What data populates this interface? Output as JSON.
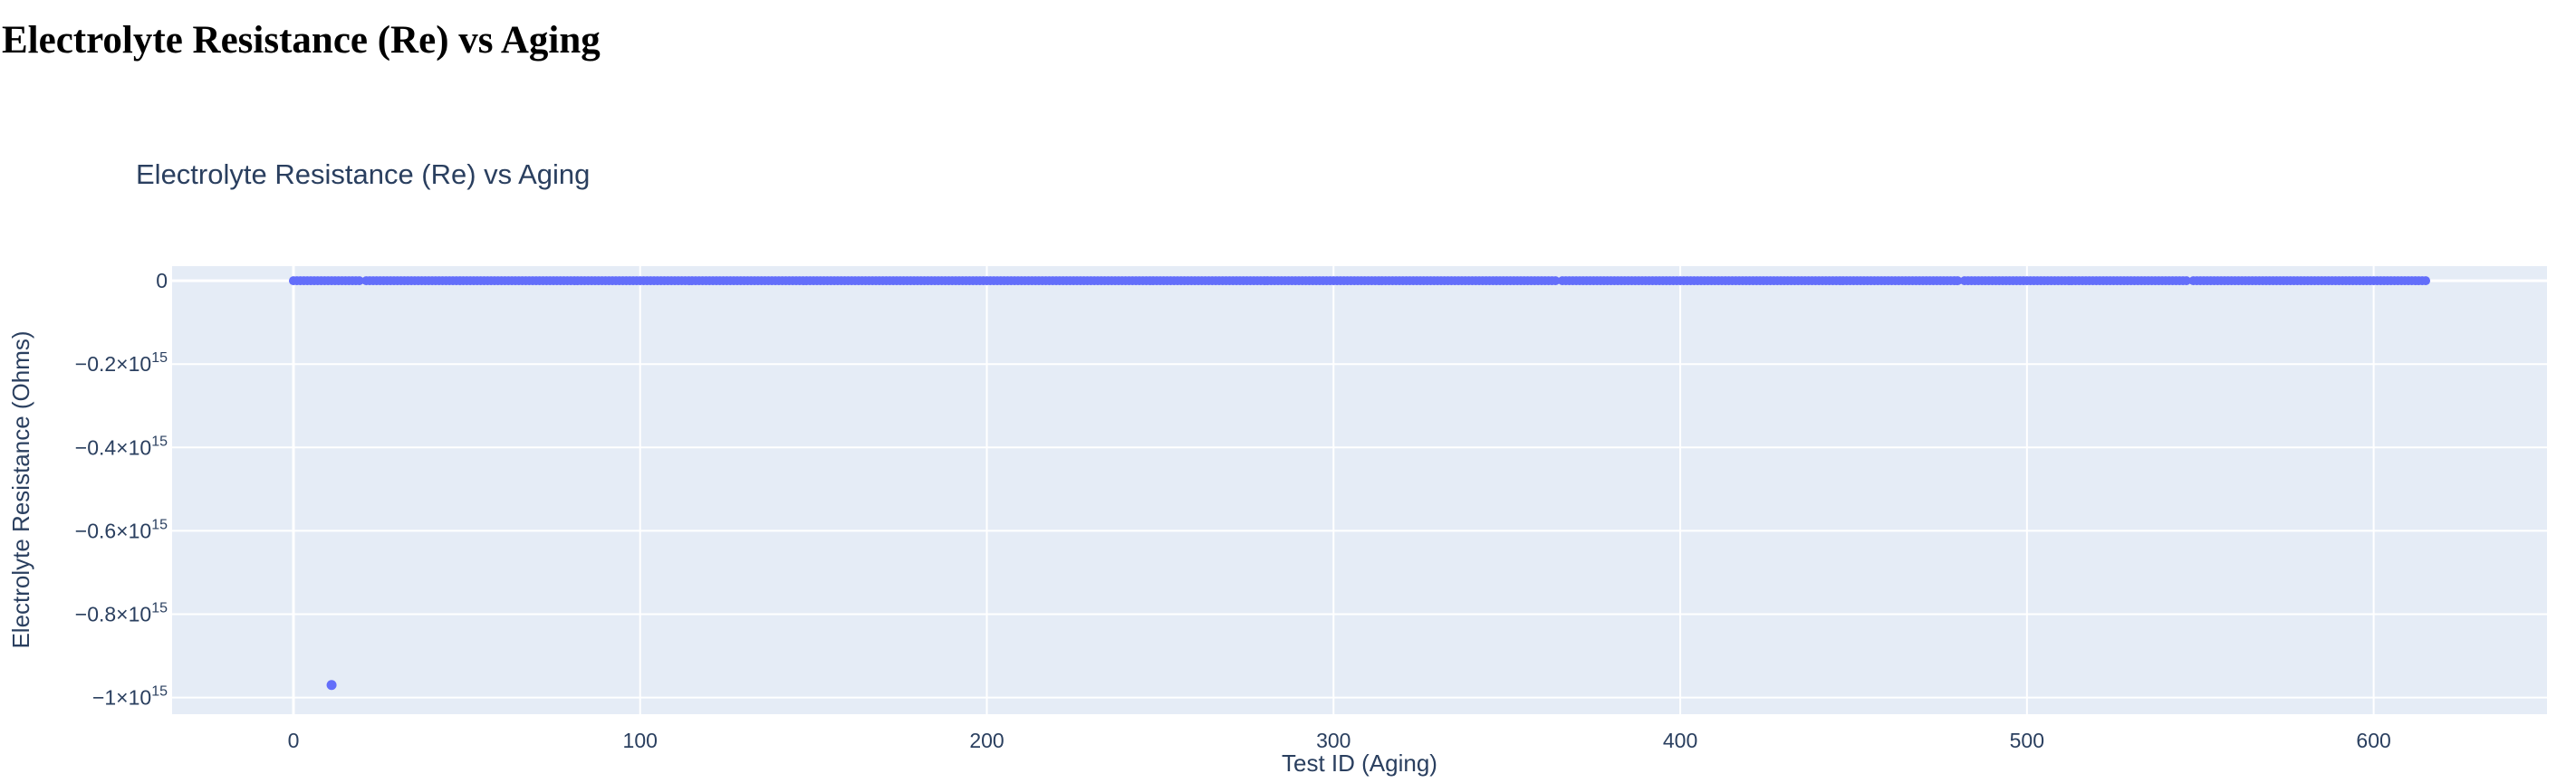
{
  "page": {
    "heading": "Electrolyte Resistance (Re) vs Aging"
  },
  "chart_data": {
    "type": "scatter",
    "title": "Electrolyte Resistance (Re) vs Aging",
    "xlabel": "Test ID (Aging)",
    "ylabel": "Electrolyte Resistance (Ohms)",
    "xlim": [
      -35,
      650
    ],
    "ylim": [
      -1040000000000000.0,
      35000000000000.0
    ],
    "grid": true,
    "legend": "none",
    "x_ticks": [
      {
        "value": 0,
        "label": "0"
      },
      {
        "value": 100,
        "label": "100"
      },
      {
        "value": 200,
        "label": "200"
      },
      {
        "value": 300,
        "label": "300"
      },
      {
        "value": 400,
        "label": "400"
      },
      {
        "value": 500,
        "label": "500"
      },
      {
        "value": 600,
        "label": "600"
      }
    ],
    "y_ticks": [
      {
        "value": 0,
        "label": "0",
        "exp": ""
      },
      {
        "value": -200000000000000.0,
        "label": "−0.2×10",
        "exp": "15"
      },
      {
        "value": -400000000000000.0,
        "label": "−0.4×10",
        "exp": "15"
      },
      {
        "value": -600000000000000.0,
        "label": "−0.6×10",
        "exp": "15"
      },
      {
        "value": -800000000000000.0,
        "label": "−0.8×10",
        "exp": "15"
      },
      {
        "value": -1000000000000000.0,
        "label": "−1×10",
        "exp": "15"
      }
    ],
    "series": [
      {
        "color": "#636efa",
        "x_start": 0,
        "x_end": 615,
        "x_step": 1,
        "x_missing": [
          20,
          365,
          481,
          547
        ],
        "y_value": 0,
        "outliers": [
          {
            "x": 11,
            "y": -970000000000000.0
          }
        ]
      }
    ],
    "colors": {
      "plot_bg": "#e5ecf6",
      "grid": "#ffffff",
      "text": "#2a3f5f"
    }
  }
}
